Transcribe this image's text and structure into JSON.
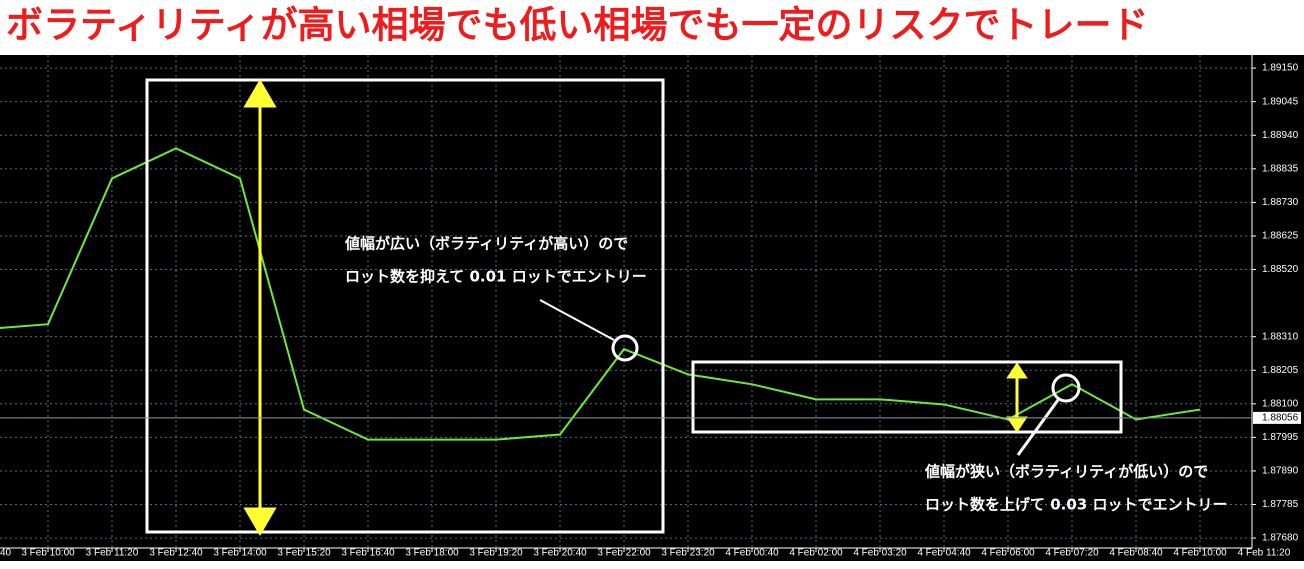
{
  "chart_data": {
    "type": "line",
    "title": "ボラティリティが高い相場でも低い相場でも一定のリスクでトレード",
    "categories": [
      "40",
      "3 Feb 10:00",
      "3 Feb 11:20",
      "3 Feb 12:40",
      "3 Feb 14:00",
      "3 Feb 15:20",
      "3 Feb 16:40",
      "3 Feb 18:00",
      "3 Feb 19:20",
      "3 Feb 20:40",
      "3 Feb 22:00",
      "3 Feb 23:20",
      "4 Feb 00:40",
      "4 Feb 02:00",
      "4 Feb 03:20",
      "4 Feb 04:40",
      "4 Feb 06:00",
      "4 Feb 07:20",
      "4 Feb 08:40",
      "4 Feb 10:00",
      "4 Feb 11:20"
    ],
    "series": [
      {
        "color": "#6fe83a",
        "values": [
          1.88333,
          1.88349,
          1.88805,
          1.88899,
          1.88805,
          1.88082,
          1.87988,
          1.87988,
          1.87988,
          1.88004,
          1.88271,
          1.88192,
          1.88161,
          1.88114,
          1.88114,
          1.88098,
          1.88051,
          1.88161,
          1.88051,
          1.88082,
          null
        ]
      }
    ],
    "ylim": [
      1.87649,
      1.89191
    ],
    "yticks": [
      {
        "value": 1.8915,
        "label": "1.89150"
      },
      {
        "value": 1.89045,
        "label": "1.89045"
      },
      {
        "value": 1.8894,
        "label": "1.88940"
      },
      {
        "value": 1.88835,
        "label": "1.88835"
      },
      {
        "value": 1.8873,
        "label": "1.88730"
      },
      {
        "value": 1.88625,
        "label": "1.88625"
      },
      {
        "value": 1.8852,
        "label": "1.88520"
      },
      {
        "value": 1.8831,
        "label": "1.88310"
      },
      {
        "value": 1.88205,
        "label": "1.88205"
      },
      {
        "value": 1.881,
        "label": "1.88100"
      },
      {
        "value": 1.87995,
        "label": "1.87995"
      },
      {
        "value": 1.8789,
        "label": "1.87890"
      },
      {
        "value": 1.87785,
        "label": "1.87785"
      },
      {
        "value": 1.8768,
        "label": "1.87680"
      }
    ],
    "last_price": {
      "value": 1.88056,
      "label": "1.88056"
    },
    "grid": true,
    "annotations": [
      [
        "値幅が広い（ボラティリティが高い）ので",
        "ロット数を抑えて 0.01 ロットでエントリー"
      ],
      [
        "値幅が狭い（ボラティリティが低い）ので",
        "ロット数を上げて 0.03 ロットでエントリー"
      ]
    ]
  }
}
